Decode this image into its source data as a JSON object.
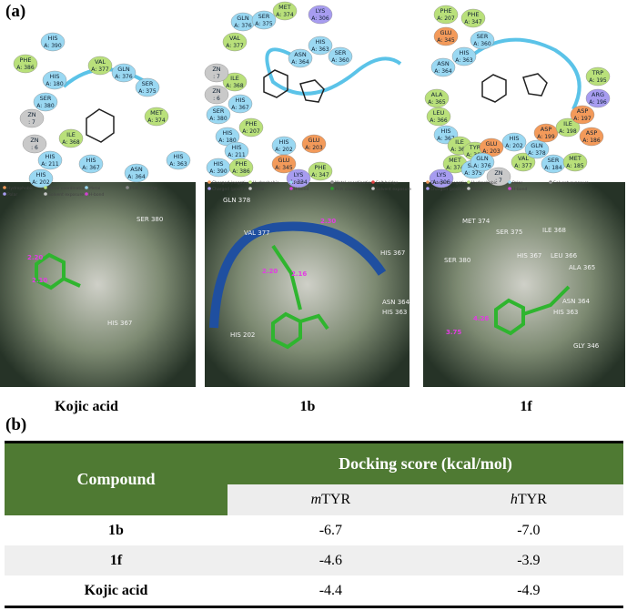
{
  "panel_a": {
    "label": "(a)",
    "diagrams": [
      {
        "residues": [
          {
            "name": "PHE",
            "id": "A: 386",
            "color": "#b9e07a"
          },
          {
            "name": "HIS",
            "id": "A: 390",
            "color": "#9ad8f2"
          },
          {
            "name": "HIS",
            "id": "A: 180",
            "color": "#9ad8f2"
          },
          {
            "name": "SER",
            "id": "A: 380",
            "color": "#9ad8f2"
          },
          {
            "name": "VAL",
            "id": "A: 377",
            "color": "#b9e07a"
          },
          {
            "name": "GLN",
            "id": "A: 376",
            "color": "#9ad8f2"
          },
          {
            "name": "SER",
            "id": "A: 375",
            "color": "#9ad8f2"
          },
          {
            "name": "MET",
            "id": "A: 374",
            "color": "#b9e07a"
          },
          {
            "name": "ZN",
            "id": ": 7",
            "color": "#c9c9c9"
          },
          {
            "name": "ZN",
            "id": ": 6",
            "color": "#c9c9c9"
          },
          {
            "name": "ILE",
            "id": "A: 368",
            "color": "#b9e07a"
          },
          {
            "name": "HIS",
            "id": "A: 211",
            "color": "#9ad8f2"
          },
          {
            "name": "HIS",
            "id": "A: 202",
            "color": "#9ad8f2"
          },
          {
            "name": "HIS",
            "id": "A: 367",
            "color": "#9ad8f2"
          },
          {
            "name": "ASN",
            "id": "A: 364",
            "color": "#9ad8f2"
          },
          {
            "name": "HIS",
            "id": "A: 363",
            "color": "#9ad8f2"
          }
        ],
        "legend": [
          "Hydrophobic",
          "Polar",
          "Metal coordination",
          "Solvent exposure",
          "Metal",
          "H-bond",
          "Pi-Pi stacking"
        ]
      },
      {
        "residues": [
          {
            "name": "GLN",
            "id": "A: 376",
            "color": "#9ad8f2"
          },
          {
            "name": "SER",
            "id": "A: 375",
            "color": "#9ad8f2"
          },
          {
            "name": "MET",
            "id": "A: 374",
            "color": "#b9e07a"
          },
          {
            "name": "LYS",
            "id": "A: 306",
            "color": "#a79cf0"
          },
          {
            "name": "VAL",
            "id": "A: 377",
            "color": "#b9e07a"
          },
          {
            "name": "HIS",
            "id": "A: 363",
            "color": "#9ad8f2"
          },
          {
            "name": "SER",
            "id": "A: 360",
            "color": "#9ad8f2"
          },
          {
            "name": "ASN",
            "id": "A: 364",
            "color": "#9ad8f2"
          },
          {
            "name": "ILE",
            "id": "A: 368",
            "color": "#b9e07a"
          },
          {
            "name": "ZN",
            "id": ": 7",
            "color": "#c9c9c9"
          },
          {
            "name": "ZN",
            "id": ": 6",
            "color": "#c9c9c9"
          },
          {
            "name": "SER",
            "id": "A: 380",
            "color": "#9ad8f2"
          },
          {
            "name": "HIS",
            "id": "A: 367",
            "color": "#9ad8f2"
          },
          {
            "name": "HIS",
            "id": "A: 180",
            "color": "#9ad8f2"
          },
          {
            "name": "PHE",
            "id": "A: 207",
            "color": "#b9e07a"
          },
          {
            "name": "HIS",
            "id": "A: 211",
            "color": "#9ad8f2"
          },
          {
            "name": "HIS",
            "id": "A: 390",
            "color": "#9ad8f2"
          },
          {
            "name": "PHE",
            "id": "A: 386",
            "color": "#b9e07a"
          },
          {
            "name": "HIS",
            "id": "A: 202",
            "color": "#9ad8f2"
          },
          {
            "name": "GLU",
            "id": "A: 203",
            "color": "#f39a5a"
          },
          {
            "name": "GLU",
            "id": "A: 345",
            "color": "#f39a5a"
          },
          {
            "name": "LYS",
            "id": "A: 334",
            "color": "#a79cf0"
          },
          {
            "name": "PHE",
            "id": "A: 347",
            "color": "#b9e07a"
          }
        ],
        "legend": [
          "Charged (negative)",
          "Charged (positive)",
          "Hydrophobic",
          "Metal",
          "Polar",
          "H-bond",
          "Metal coordination",
          "Pi-Pi stacking",
          "Salt bridge",
          "Solvent exposure"
        ]
      },
      {
        "residues": [
          {
            "name": "PHE",
            "id": "A: 207",
            "color": "#b9e07a"
          },
          {
            "name": "PHE",
            "id": "A: 347",
            "color": "#b9e07a"
          },
          {
            "name": "GLU",
            "id": "A: 345",
            "color": "#f39a5a"
          },
          {
            "name": "SER",
            "id": "A: 360",
            "color": "#9ad8f2"
          },
          {
            "name": "HIS",
            "id": "A: 363",
            "color": "#9ad8f2"
          },
          {
            "name": "ASN",
            "id": "A: 364",
            "color": "#9ad8f2"
          },
          {
            "name": "ALA",
            "id": "A: 365",
            "color": "#b9e07a"
          },
          {
            "name": "LEU",
            "id": "A: 366",
            "color": "#b9e07a"
          },
          {
            "name": "HIS",
            "id": "A: 367",
            "color": "#9ad8f2"
          },
          {
            "name": "ILE",
            "id": "A: 368",
            "color": "#b9e07a"
          },
          {
            "name": "TYR",
            "id": "A: 369",
            "color": "#b9e07a"
          },
          {
            "name": "GLU",
            "id": "A: 203",
            "color": "#f39a5a"
          },
          {
            "name": "HIS",
            "id": "A: 202",
            "color": "#9ad8f2"
          },
          {
            "name": "MET",
            "id": "A: 374",
            "color": "#b9e07a"
          },
          {
            "name": "SER",
            "id": "A: 375",
            "color": "#9ad8f2"
          },
          {
            "name": "ZN",
            "id": ": 7",
            "color": "#c9c9c9"
          },
          {
            "name": "GLN",
            "id": "A: 376",
            "color": "#9ad8f2"
          },
          {
            "name": "VAL",
            "id": "A: 377",
            "color": "#b9e07a"
          },
          {
            "name": "GLN",
            "id": "A: 378",
            "color": "#9ad8f2"
          },
          {
            "name": "SER",
            "id": "A: 184",
            "color": "#9ad8f2"
          },
          {
            "name": "MET",
            "id": "A: 185",
            "color": "#b9e07a"
          },
          {
            "name": "LYS",
            "id": "A: 306",
            "color": "#a79cf0"
          },
          {
            "name": "ASP",
            "id": "A: 199",
            "color": "#f39a5a"
          },
          {
            "name": "ILE",
            "id": "A: 198",
            "color": "#b9e07a"
          },
          {
            "name": "ASP",
            "id": "A: 197",
            "color": "#f39a5a"
          },
          {
            "name": "ASP",
            "id": "A: 186",
            "color": "#f39a5a"
          },
          {
            "name": "ARG",
            "id": "A: 196",
            "color": "#a79cf0"
          },
          {
            "name": "TRP",
            "id": "A: 195",
            "color": "#b9e07a"
          }
        ],
        "legend": [
          "Charged (negative)",
          "Charged (positive)",
          "Hydrophobic",
          "Metal",
          "Polar",
          "H-bond",
          "Solvent exposure"
        ]
      }
    ],
    "views": [
      {
        "residues": [
          "SER 380",
          "HIS 367"
        ],
        "distances": [
          "2.20",
          "2.10"
        ]
      },
      {
        "residues": [
          "GLN 378",
          "VAL 377",
          "HIS 367",
          "ASN 364",
          "HIS 363",
          "HIS 202"
        ],
        "distances": [
          "2.30",
          "2.20",
          "2.16"
        ]
      },
      {
        "residues": [
          "MET 374",
          "SER 375",
          "ILE 368",
          "HIS 367",
          "LEU 366",
          "ALA 365",
          "SER 380",
          "ASN 364",
          "HIS 363",
          "GLY 346"
        ],
        "distances": [
          "4.26",
          "3.75"
        ]
      }
    ],
    "captions": [
      "Kojic acid",
      "1b",
      "1f"
    ]
  },
  "panel_b": {
    "label": "(b)",
    "table": {
      "header": {
        "compound": "Compound",
        "score": "Docking score (kcal/mol)",
        "columns": [
          "mTYR",
          "hTYR"
        ]
      },
      "rows": [
        [
          "1b",
          "-6.7",
          "-7.0"
        ],
        [
          "1f",
          "-4.6",
          "-3.9"
        ],
        [
          "Kojic acid",
          "-4.4",
          "-4.9"
        ]
      ]
    }
  }
}
